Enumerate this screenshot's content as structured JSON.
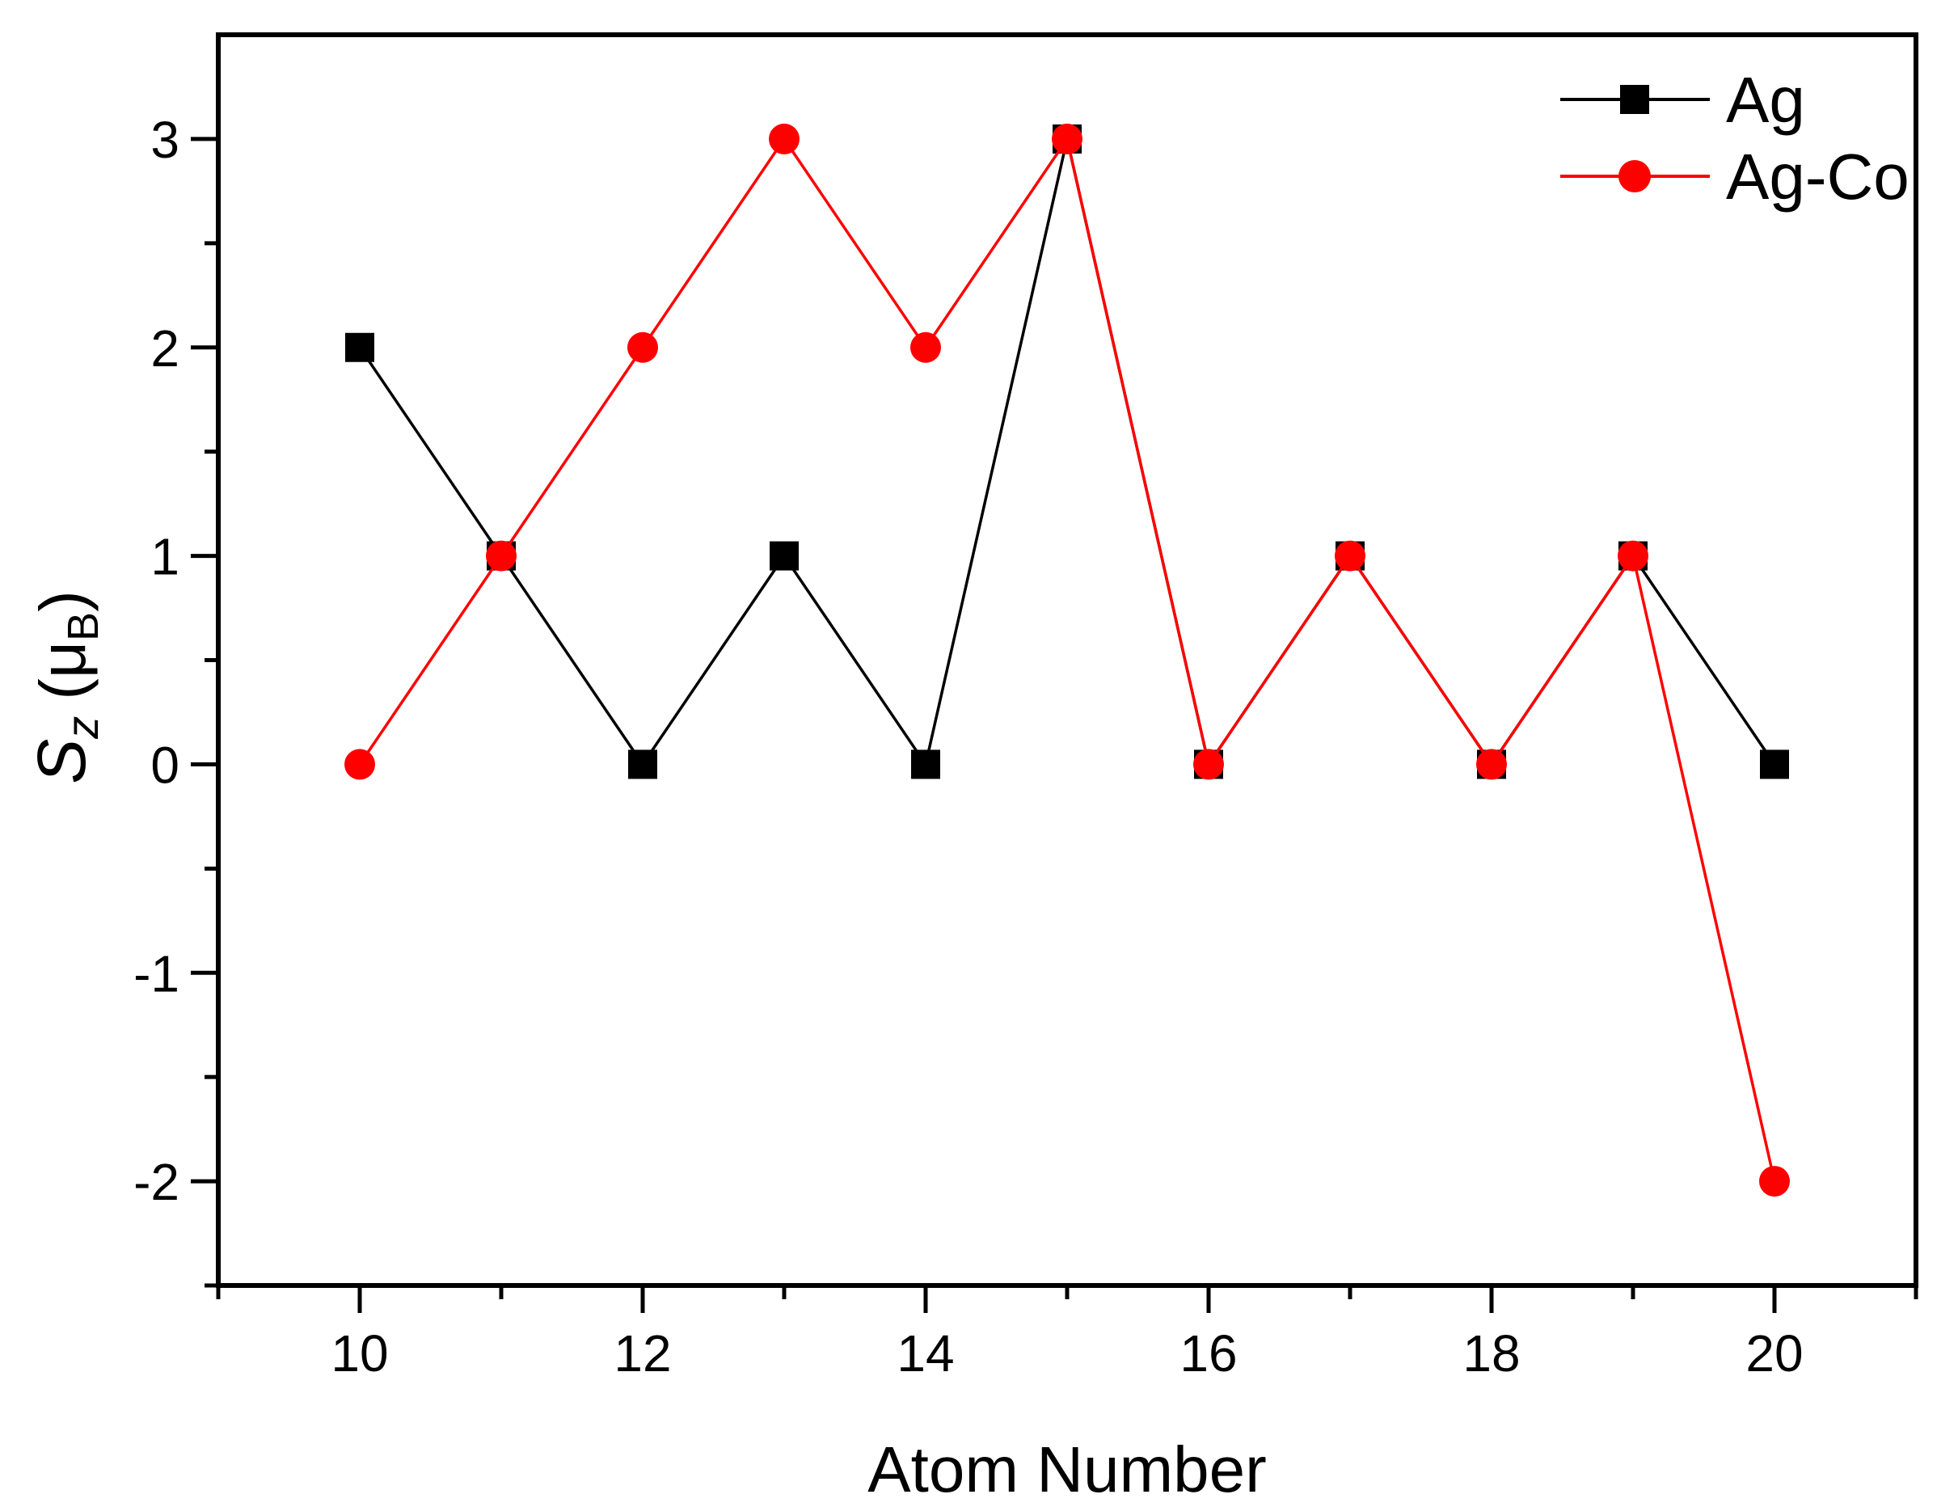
{
  "figure": {
    "background": "#ffffff",
    "frame_color": "#000000"
  },
  "chart_data": {
    "type": "line",
    "title": "",
    "xlabel": "Atom Number",
    "ylabel": "Sz (muB)",
    "ylabel_parts": {
      "symbol": "S",
      "symbol_sub": "z",
      "unit_open": "(μ",
      "unit_sub": "B",
      "unit_close": ")"
    },
    "x": [
      10,
      11,
      12,
      13,
      14,
      15,
      16,
      17,
      18,
      19,
      20
    ],
    "series": [
      {
        "name": "Ag",
        "color": "#000000",
        "marker": "square",
        "values": [
          2,
          1,
          0,
          1,
          0,
          3,
          0,
          1,
          0,
          1,
          0
        ]
      },
      {
        "name": "Ag-Co",
        "color": "#ff0000",
        "marker": "circle",
        "values": [
          0,
          1,
          2,
          3,
          2,
          3,
          0,
          1,
          0,
          1,
          -2
        ]
      }
    ],
    "xlim": [
      9,
      21
    ],
    "ylim": [
      -2.5,
      3.5
    ],
    "x_major_ticks": [
      10,
      12,
      14,
      16,
      18,
      20
    ],
    "x_major_tick_labels": [
      "10",
      "12",
      "14",
      "16",
      "18",
      "20"
    ],
    "x_minor_ticks": [
      9,
      11,
      13,
      15,
      17,
      19,
      21
    ],
    "y_major_ticks": [
      -2,
      -1,
      0,
      1,
      2,
      3
    ],
    "y_major_tick_labels": [
      "-2",
      "-1",
      "0",
      "1",
      "2",
      "3"
    ],
    "y_minor_ticks": [
      -2.5,
      -1.5,
      -0.5,
      0.5,
      1.5,
      2.5
    ],
    "grid": false,
    "legend_position": "top-right"
  }
}
